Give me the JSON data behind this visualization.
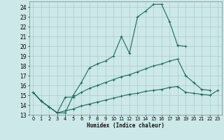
{
  "xlabel": "Humidex (Indice chaleur)",
  "bg_color": "#cce8e8",
  "grid_color": "#aacccc",
  "line_color": "#1a6b5a",
  "xlim": [
    -0.5,
    23.5
  ],
  "ylim": [
    13,
    24.6
  ],
  "yticks": [
    13,
    14,
    15,
    16,
    17,
    18,
    19,
    20,
    21,
    22,
    23,
    24
  ],
  "xticks": [
    0,
    1,
    2,
    3,
    4,
    5,
    6,
    7,
    8,
    9,
    10,
    11,
    12,
    13,
    14,
    15,
    16,
    17,
    18,
    19,
    20,
    21,
    22,
    23
  ],
  "line1_x": [
    0,
    1,
    2,
    3,
    4,
    5,
    6,
    7,
    8,
    9,
    10,
    11,
    12,
    13,
    14,
    15,
    16,
    17,
    18,
    19
  ],
  "line1_y": [
    15.3,
    14.4,
    13.8,
    13.2,
    13.2,
    15.0,
    16.3,
    17.8,
    18.2,
    18.5,
    19.0,
    21.0,
    19.3,
    23.0,
    23.6,
    24.3,
    24.3,
    22.5,
    20.1,
    20.0
  ],
  "line2_x": [
    0,
    1,
    2,
    3,
    4,
    5,
    6,
    7,
    8,
    9,
    10,
    11,
    12,
    13,
    14,
    15,
    16,
    17,
    18,
    19,
    20,
    21,
    22
  ],
  "line2_y": [
    15.3,
    14.4,
    13.8,
    13.2,
    14.8,
    14.8,
    15.3,
    15.7,
    16.0,
    16.3,
    16.6,
    16.9,
    17.1,
    17.4,
    17.7,
    18.0,
    18.2,
    18.5,
    18.7,
    17.0,
    16.3,
    15.6,
    15.5
  ],
  "line3_x": [
    0,
    1,
    2,
    3,
    4,
    5,
    6,
    7,
    8,
    9,
    10,
    11,
    12,
    13,
    14,
    15,
    16,
    17,
    18,
    19,
    20,
    21,
    22,
    23
  ],
  "line3_y": [
    15.3,
    14.4,
    13.8,
    13.2,
    13.4,
    13.6,
    13.9,
    14.1,
    14.3,
    14.5,
    14.7,
    14.9,
    15.1,
    15.2,
    15.4,
    15.5,
    15.6,
    15.8,
    15.9,
    15.3,
    15.2,
    15.1,
    15.0,
    15.5
  ]
}
